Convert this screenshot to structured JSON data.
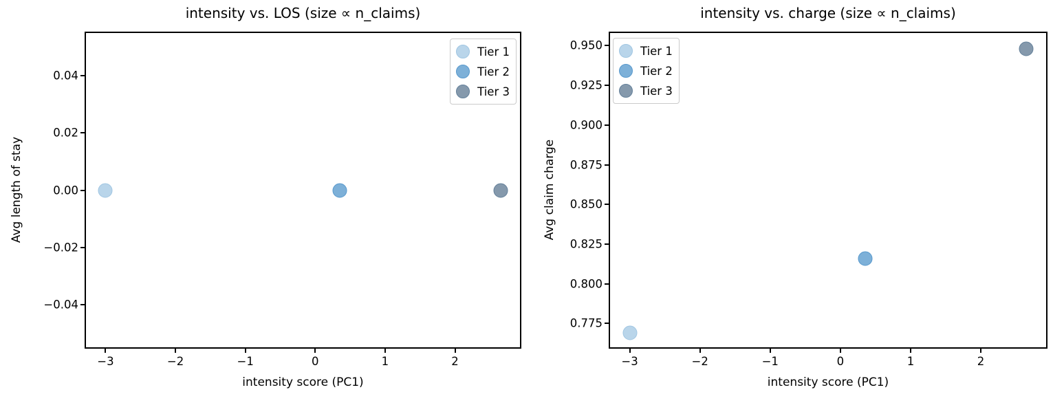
{
  "figure": {
    "background": "#ffffff",
    "tiers": [
      {
        "name": "Tier 1",
        "fill": "#b9d5ea",
        "edge": "#a0c6e2"
      },
      {
        "name": "Tier 2",
        "fill": "#7db0d8",
        "edge": "#5899cd"
      },
      {
        "name": "Tier 3",
        "fill": "#8599ac",
        "edge": "#64809a"
      }
    ]
  },
  "chart_data": [
    {
      "type": "scatter",
      "title": "intensity vs. LOS (size ∝ n_claims)",
      "xlabel": "intensity score (PC1)",
      "ylabel": "Avg length of stay",
      "xlim": [
        -3.28,
        2.93
      ],
      "ylim": [
        -0.055,
        0.055
      ],
      "grid": false,
      "legend_position": "top-right",
      "x_ticks": {
        "values": [
          -3,
          -2,
          -1,
          0,
          1,
          2
        ],
        "labels": [
          "−3",
          "−2",
          "−1",
          "0",
          "1",
          "2"
        ]
      },
      "y_ticks": {
        "values": [
          0.04,
          0.02,
          0.0,
          -0.02,
          -0.04
        ],
        "labels": [
          "0.04",
          "0.02",
          "0.00",
          "−0.02",
          "−0.04"
        ]
      },
      "series": [
        {
          "name": "Tier 1",
          "fill": "#b9d5ea",
          "edge": "#a0c6e2",
          "marker_px": 21,
          "points": [
            {
              "x": -3.0,
              "y": 0.0
            }
          ]
        },
        {
          "name": "Tier 2",
          "fill": "#7db0d8",
          "edge": "#5899cd",
          "marker_px": 21,
          "points": [
            {
              "x": 0.35,
              "y": 0.0
            }
          ]
        },
        {
          "name": "Tier 3",
          "fill": "#8599ac",
          "edge": "#64809a",
          "marker_px": 21,
          "points": [
            {
              "x": 2.65,
              "y": 0.0
            }
          ]
        }
      ]
    },
    {
      "type": "scatter",
      "title": "intensity vs. charge (size ∝ n_claims)",
      "xlabel": "intensity score (PC1)",
      "ylabel": "Avg claim charge",
      "xlim": [
        -3.28,
        2.93
      ],
      "ylim": [
        0.76,
        0.958
      ],
      "grid": false,
      "legend_position": "top-left",
      "x_ticks": {
        "values": [
          -3,
          -2,
          -1,
          0,
          1,
          2
        ],
        "labels": [
          "−3",
          "−2",
          "−1",
          "0",
          "1",
          "2"
        ]
      },
      "y_ticks": {
        "values": [
          0.95,
          0.925,
          0.9,
          0.875,
          0.85,
          0.825,
          0.8,
          0.775
        ],
        "labels": [
          "0.950",
          "0.925",
          "0.900",
          "0.875",
          "0.850",
          "0.825",
          "0.800",
          "0.775"
        ]
      },
      "series": [
        {
          "name": "Tier 1",
          "fill": "#b9d5ea",
          "edge": "#a0c6e2",
          "marker_px": 21,
          "points": [
            {
              "x": -3.0,
              "y": 0.769
            }
          ]
        },
        {
          "name": "Tier 2",
          "fill": "#7db0d8",
          "edge": "#5899cd",
          "marker_px": 21,
          "points": [
            {
              "x": 0.35,
              "y": 0.816
            }
          ]
        },
        {
          "name": "Tier 3",
          "fill": "#8599ac",
          "edge": "#64809a",
          "marker_px": 21,
          "points": [
            {
              "x": 2.65,
              "y": 0.948
            }
          ]
        }
      ]
    }
  ]
}
